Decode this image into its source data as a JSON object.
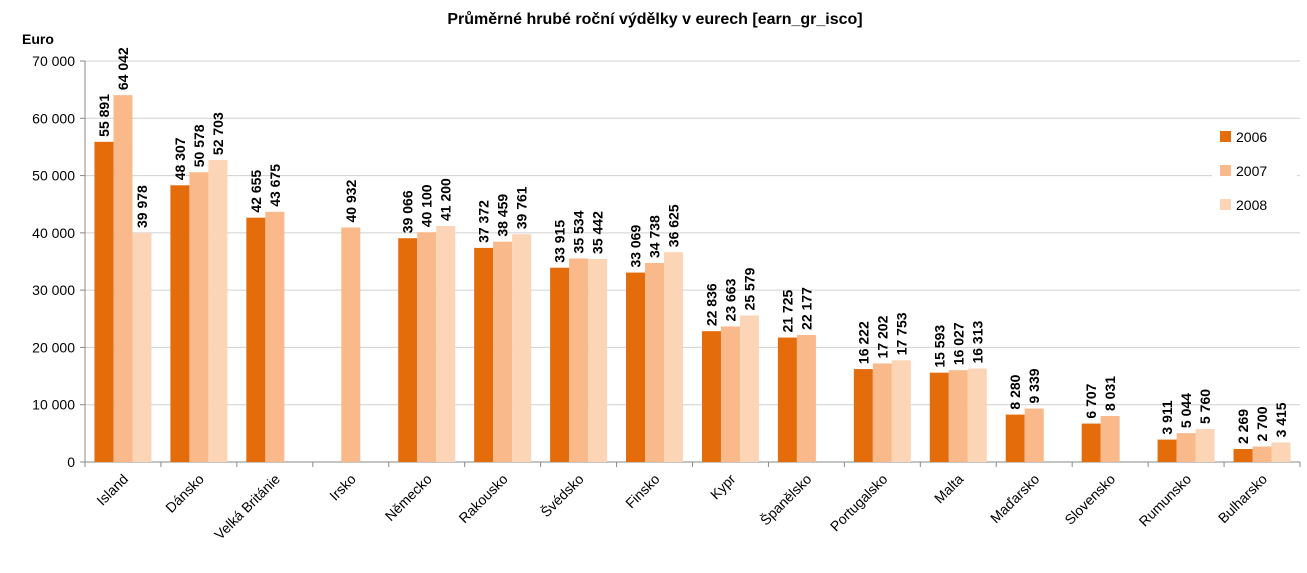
{
  "chart_data": {
    "type": "bar",
    "title": "Průměrné hrubé roční výdělky v eurech  [earn_gr_isco]",
    "y_label": "Euro",
    "categories": [
      "Island",
      "Dánsko",
      "Velká Británie",
      "Irsko",
      "Německo",
      "Rakousko",
      "Švédsko",
      "Finsko",
      "Kypr",
      "Španělsko",
      "Portugalsko",
      "Malta",
      "Maďarsko",
      "Slovensko",
      "Rumunsko",
      "Bulharsko"
    ],
    "series": [
      {
        "name": "2006",
        "color": "#e46c0a",
        "values": [
          55891,
          48307,
          42655,
          null,
          39066,
          37372,
          33915,
          33069,
          22836,
          21725,
          16222,
          15593,
          8280,
          6707,
          3911,
          2269
        ],
        "value_labels": [
          "55 891",
          "48 307",
          "42 655",
          null,
          "39 066",
          "37 372",
          "33 915",
          "33 069",
          "22 836",
          "21 725",
          "16 222",
          "15 593",
          "8 280",
          "6 707",
          "3 911",
          "2 269"
        ]
      },
      {
        "name": "2007",
        "color": "#f9b98a",
        "values": [
          64042,
          50578,
          43675,
          40932,
          40100,
          38459,
          35534,
          34738,
          23663,
          22177,
          17202,
          16027,
          9339,
          8031,
          5044,
          2700
        ],
        "value_labels": [
          "64 042",
          "50 578",
          "43 675",
          "40 932",
          "40 100",
          "38 459",
          "35 534",
          "34 738",
          "23 663",
          "22 177",
          "17 202",
          "16 027",
          "9 339",
          "8 031",
          "5 044",
          "2 700"
        ]
      },
      {
        "name": "2008",
        "color": "#fbd5b5",
        "values": [
          39978,
          52703,
          null,
          null,
          41200,
          39761,
          35442,
          36625,
          25579,
          null,
          17753,
          16313,
          null,
          null,
          5760,
          3415
        ],
        "value_labels": [
          "39 978",
          "52 703",
          null,
          null,
          "41 200",
          "39 761",
          "35 442",
          "36 625",
          "25 579",
          null,
          "17 753",
          "16 313",
          null,
          null,
          "5 760",
          "3 415"
        ]
      }
    ],
    "ylim": [
      0,
      70000
    ],
    "yticks": [
      0,
      {
        "value": 10000,
        "label": "10 000"
      },
      {
        "value": 20000,
        "label": "20 000"
      },
      {
        "value": 30000,
        "label": "30 000"
      },
      {
        "value": 40000,
        "label": "40 000"
      },
      {
        "value": 50000,
        "label": "50 000"
      },
      {
        "value": 60000,
        "label": "60 000"
      },
      {
        "value": 70000,
        "label": "70 000"
      }
    ],
    "grid": true,
    "legend": "right"
  }
}
